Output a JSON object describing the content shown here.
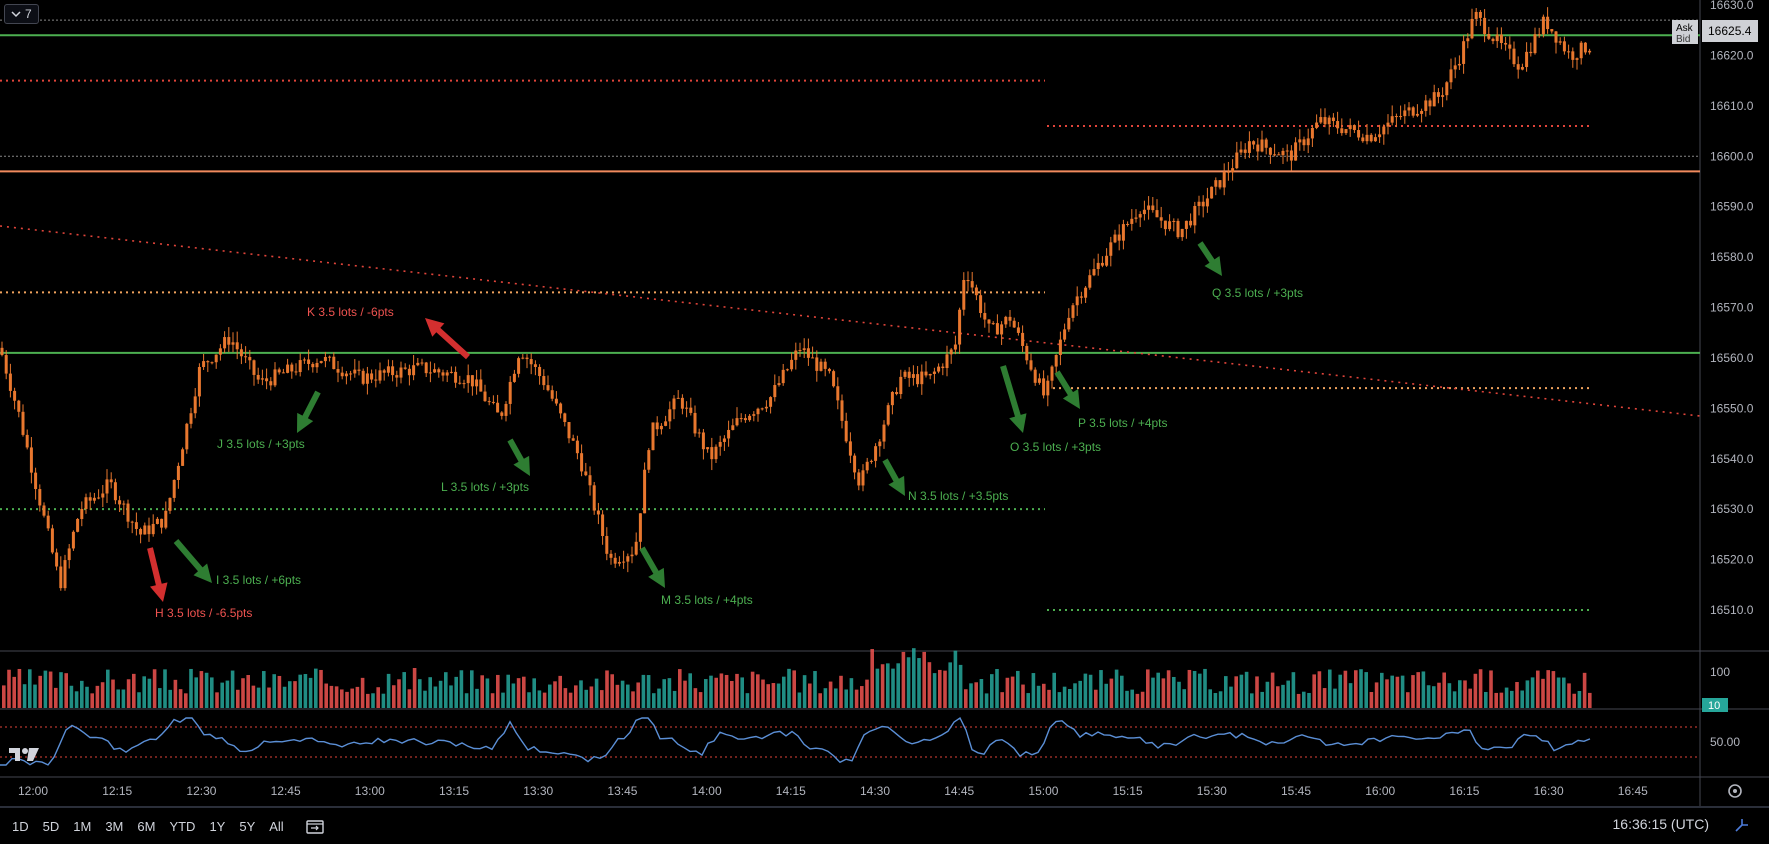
{
  "legend": {
    "collapse_label": "7"
  },
  "price_axis": {
    "ticks": [
      "16630.0",
      "16620.0",
      "16610.0",
      "16600.0",
      "16590.0",
      "16580.0",
      "16570.0",
      "16560.0",
      "16550.0",
      "16540.0",
      "16530.0",
      "16520.0",
      "16510.0"
    ],
    "ask_label": "Ask",
    "bid_label": "Bid",
    "current_price": "16625.4"
  },
  "volume_axis": {
    "tick": "100",
    "current": "10"
  },
  "rsi_axis": {
    "tick": "50.00"
  },
  "time_axis": {
    "ticks": [
      "12:00",
      "12:15",
      "12:30",
      "12:45",
      "13:00",
      "13:15",
      "13:30",
      "13:45",
      "14:00",
      "14:15",
      "14:30",
      "14:45",
      "15:00",
      "15:15",
      "15:30",
      "15:45",
      "16:00",
      "16:15",
      "16:30",
      "16:45"
    ]
  },
  "trades": [
    {
      "label": "H 3.5 lots / -6.5pts",
      "result": "loss"
    },
    {
      "label": "I 3.5 lots / +6pts",
      "result": "win"
    },
    {
      "label": "J 3.5 lots / +3pts",
      "result": "win"
    },
    {
      "label": "K 3.5 lots / -6pts",
      "result": "loss"
    },
    {
      "label": "L 3.5 lots / +3pts",
      "result": "win"
    },
    {
      "label": "M 3.5 lots / +4pts",
      "result": "win"
    },
    {
      "label": "N 3.5 lots / +3.5pts",
      "result": "win"
    },
    {
      "label": "O 3.5 lots / +3pts",
      "result": "win"
    },
    {
      "label": "P 3.5 lots / +4pts",
      "result": "win"
    },
    {
      "label": "Q 3.5 lots / +3pts",
      "result": "win"
    }
  ],
  "bottom_toolbar": {
    "ranges": [
      "1D",
      "5D",
      "1M",
      "3M",
      "6M",
      "YTD",
      "1Y",
      "5Y",
      "All"
    ],
    "clock": "16:36:15 (UTC)"
  },
  "colors": {
    "candle": "#e8772e",
    "support_line": "#4caf50",
    "resistance_line": "#f08a5d",
    "win": "#2e7d32",
    "loss": "#d32f2f",
    "vol_up": "#26a69a",
    "vol_down": "#ef5350",
    "rsi_line": "#5b8fd6"
  },
  "icons": {
    "legend_toggle": "chevron-down-icon",
    "goto_date": "calendar-goto-icon",
    "settings": "gear-icon",
    "logo": "tradingview-logo-icon"
  }
}
